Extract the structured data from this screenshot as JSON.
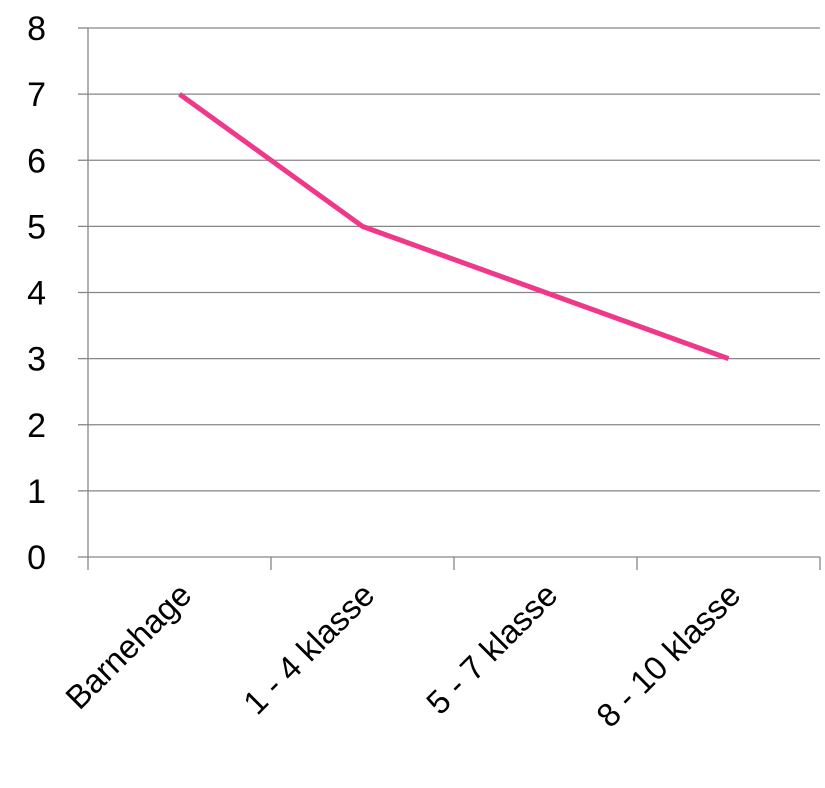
{
  "chart_data": {
    "type": "line",
    "title": "",
    "xlabel": "",
    "ylabel": "",
    "categories": [
      "Barnehage",
      "1 - 4 klasse",
      "5 - 7 klasse",
      "8 - 10 klasse"
    ],
    "series": [
      {
        "values": [
          7,
          5,
          4,
          3
        ],
        "color": "#f0388a"
      }
    ],
    "ylim": [
      0,
      8
    ],
    "yticks": [
      "0",
      "1",
      "2",
      "3",
      "4",
      "5",
      "6",
      "7",
      "8"
    ],
    "grid": true,
    "legend": "none"
  }
}
